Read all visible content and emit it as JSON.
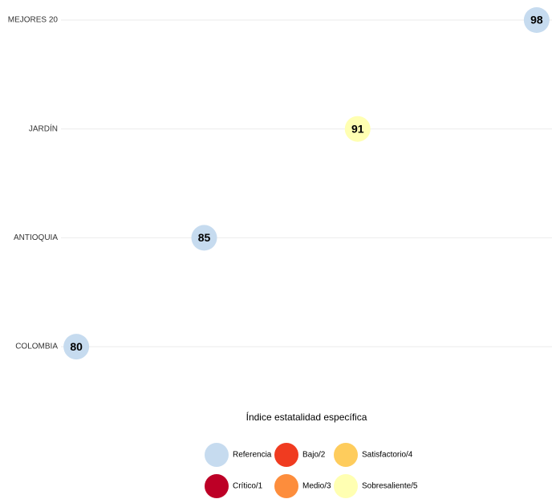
{
  "chart_data": {
    "type": "dot",
    "categories": [
      "MEJORES 20",
      "JARDÍN",
      "ANTIOQUIA",
      "COLOMBIA"
    ],
    "values": [
      98,
      91,
      85,
      80
    ],
    "colors": [
      "#c6dbef",
      "#ffffb2",
      "#c6dbef",
      "#c6dbef"
    ],
    "xlim": [
      79.4,
      98.6
    ],
    "grid": true,
    "legend": {
      "title": "Índice estatalidad específica",
      "items": [
        {
          "name": "Referencia",
          "color": "#c6dbef"
        },
        {
          "name": "Crítico/1",
          "color": "#bd0026"
        },
        {
          "name": "Bajo/2",
          "color": "#f03b20"
        },
        {
          "name": "Medio/3",
          "color": "#fd8d3c"
        },
        {
          "name": "Satisfactorio/4",
          "color": "#fecc5c"
        },
        {
          "name": "Sobresaliente/5",
          "color": "#ffffb2"
        }
      ]
    }
  }
}
